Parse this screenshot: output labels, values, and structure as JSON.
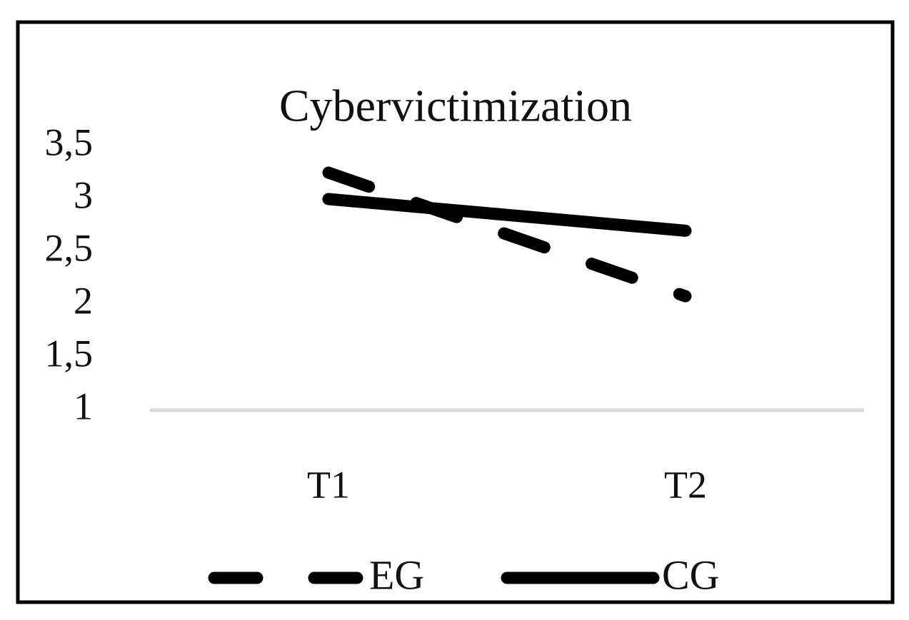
{
  "chart_data": {
    "type": "line",
    "title": "Cybervictimization",
    "categories": [
      "T1",
      "T2"
    ],
    "series": [
      {
        "name": "EG",
        "color": "#000000",
        "dashed": true,
        "values": [
          3.25,
          2.08
        ]
      },
      {
        "name": "CG",
        "color": "#000000",
        "dashed": false,
        "values": [
          3.0,
          2.7
        ]
      }
    ],
    "ylim": [
      1,
      3.5
    ],
    "yticks": [
      1,
      {
        "value": 1.5,
        "label": "1,5"
      },
      2,
      {
        "value": 2.5,
        "label": "2,5"
      },
      3,
      {
        "value": 3.5,
        "label": "3,5"
      }
    ],
    "grid": false,
    "legend": "bottom"
  }
}
